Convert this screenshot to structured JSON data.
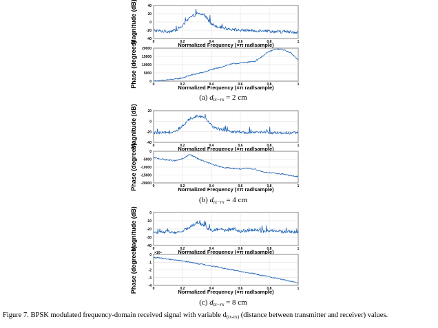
{
  "caption": {
    "prefix": "Figure 7. BPSK modulated frequency-domain received signal with variable d",
    "subscript": "(tx-rx)",
    "suffix": " (distance between transmitter and receiver) values."
  },
  "chart_data": [
    {
      "type": "line",
      "label": "(a)",
      "distance": "2 cm",
      "plot": "magnitude",
      "xlabel": "Normalized Frequency  (×π rad/sample)",
      "ylabel": "Magnitude (dB)",
      "xlim": [
        0,
        1
      ],
      "ylim": [
        -40,
        40
      ],
      "grid": true,
      "xticks": [
        "0",
        "0.2",
        "0.4",
        "0.6",
        "0.8",
        "1"
      ],
      "yticks": [
        "40",
        "20",
        "0",
        "-20",
        "-40"
      ],
      "x": [
        0,
        0.05,
        0.1,
        0.15,
        0.2,
        0.25,
        0.3,
        0.35,
        0.4,
        0.45,
        0.5,
        0.55,
        0.6,
        0.65,
        0.7,
        0.75,
        0.8,
        0.85,
        0.9,
        0.95,
        1
      ],
      "y": [
        -20,
        -22,
        -23,
        -20,
        -10,
        10,
        20,
        18,
        -5,
        -12,
        -15,
        -18,
        -20,
        -20,
        -22,
        -20,
        -22,
        -24,
        -24,
        -24,
        -25
      ]
    },
    {
      "type": "line",
      "label": "(a)",
      "distance": "2 cm",
      "plot": "phase",
      "xlabel": "Normalized Frequency  (×π rad/sample)",
      "ylabel": "Phase (degrees)",
      "xlim": [
        0,
        1
      ],
      "ylim": [
        0,
        20000
      ],
      "grid": true,
      "xticks": [
        "0",
        "0.2",
        "0.4",
        "0.6",
        "0.8",
        "1"
      ],
      "yticks": [
        "20000",
        "15000",
        "10000",
        "5000",
        "0"
      ],
      "x": [
        0,
        0.05,
        0.1,
        0.15,
        0.2,
        0.25,
        0.3,
        0.35,
        0.4,
        0.45,
        0.5,
        0.55,
        0.6,
        0.65,
        0.7,
        0.75,
        0.8,
        0.85,
        0.9,
        0.95,
        1
      ],
      "y": [
        0,
        300,
        800,
        1200,
        2000,
        3500,
        4500,
        5500,
        7000,
        8000,
        9500,
        10500,
        11000,
        11500,
        12000,
        15000,
        18000,
        19500,
        19000,
        17000,
        13000
      ]
    },
    {
      "type": "line",
      "label": "(b)",
      "distance": "4 cm",
      "plot": "magnitude",
      "xlabel": "Normalized Frequency  (×π rad/sample)",
      "ylabel": "Magnitude (dB)",
      "xlim": [
        0,
        1
      ],
      "ylim": [
        -40,
        20
      ],
      "grid": true,
      "xticks": [
        "0",
        "0.2",
        "0.4",
        "0.6",
        "0.8",
        "1"
      ],
      "yticks": [
        "20",
        "0",
        "-20",
        "-40"
      ],
      "x": [
        0,
        0.05,
        0.1,
        0.15,
        0.2,
        0.25,
        0.3,
        0.35,
        0.4,
        0.45,
        0.5,
        0.55,
        0.6,
        0.65,
        0.7,
        0.75,
        0.8,
        0.85,
        0.9,
        0.95,
        1
      ],
      "y": [
        -22,
        -22,
        -22,
        -20,
        -10,
        5,
        10,
        8,
        -8,
        -15,
        -18,
        -20,
        -20,
        -22,
        -22,
        -20,
        -22,
        -22,
        -22,
        -22,
        -22
      ]
    },
    {
      "type": "line",
      "label": "(b)",
      "distance": "4 cm",
      "plot": "phase",
      "xlabel": "Normalized Frequency  (×π rad/sample)",
      "ylabel": "Phase (degrees)",
      "xlim": [
        0,
        1
      ],
      "ylim": [
        -20000,
        5000
      ],
      "grid": true,
      "xticks": [
        "0",
        "0.2",
        "0.4",
        "0.6",
        "0.8",
        "1"
      ],
      "yticks": [
        "0",
        "-5000",
        "-10000",
        "-15000",
        "-20000"
      ],
      "x": [
        0,
        0.05,
        0.1,
        0.15,
        0.2,
        0.25,
        0.3,
        0.35,
        0.4,
        0.45,
        0.5,
        0.55,
        0.6,
        0.65,
        0.7,
        0.75,
        0.8,
        0.85,
        0.9,
        0.95,
        1
      ],
      "y": [
        0,
        -1000,
        -2000,
        -2500,
        -1000,
        2500,
        -500,
        -3000,
        -5000,
        -7000,
        -8000,
        -8500,
        -9000,
        -8500,
        -9000,
        -11000,
        -12000,
        -12500,
        -13000,
        -14500,
        -15000
      ]
    },
    {
      "type": "line",
      "label": "(c)",
      "distance": "8 cm",
      "plot": "magnitude",
      "xlabel": "Normalized Frequency  (×π rad/sample)",
      "ylabel": "Magnitude (dB)",
      "xlim": [
        0,
        1
      ],
      "ylim": [
        -40,
        0
      ],
      "grid": true,
      "xticks": [
        "0",
        "0.2",
        "0.4",
        "0.6",
        "0.8",
        "1"
      ],
      "yticks": [
        "0",
        "-10",
        "-20",
        "-30",
        "-40"
      ],
      "x": [
        0,
        0.05,
        0.1,
        0.15,
        0.2,
        0.25,
        0.3,
        0.35,
        0.4,
        0.45,
        0.5,
        0.55,
        0.6,
        0.65,
        0.7,
        0.75,
        0.8,
        0.85,
        0.9,
        0.95,
        1
      ],
      "y": [
        -24,
        -24,
        -23,
        -25,
        -22,
        -18,
        -12,
        -16,
        -22,
        -20,
        -22,
        -20,
        -23,
        -22,
        -21,
        -23,
        -22,
        -22,
        -24,
        -23,
        -25
      ]
    },
    {
      "type": "line",
      "label": "(c)",
      "distance": "8 cm",
      "plot": "phase",
      "xlabel": "Normalized Frequency  (×π rad/sample)",
      "ylabel": "Phase (degrees)",
      "xlim": [
        0,
        1
      ],
      "ylim": [
        -45000,
        5000
      ],
      "grid": true,
      "yscale_note": "×10⁴",
      "xticks": [
        "0",
        "0.2",
        "0.4",
        "0.6",
        "0.8",
        "1"
      ],
      "yticks": [
        "0",
        "-1",
        "-2",
        "-3",
        "-4"
      ],
      "x": [
        0,
        0.05,
        0.1,
        0.15,
        0.2,
        0.25,
        0.3,
        0.35,
        0.4,
        0.45,
        0.5,
        0.55,
        0.6,
        0.65,
        0.7,
        0.75,
        0.8,
        0.85,
        0.9,
        0.95,
        1
      ],
      "y": [
        0,
        -1000,
        -2500,
        -4000,
        -5500,
        -7500,
        -9500,
        -11500,
        -13500,
        -15500,
        -18000,
        -20000,
        -22000,
        -24500,
        -26500,
        -29000,
        -31000,
        -33500,
        -36000,
        -38500,
        -41000
      ]
    }
  ]
}
